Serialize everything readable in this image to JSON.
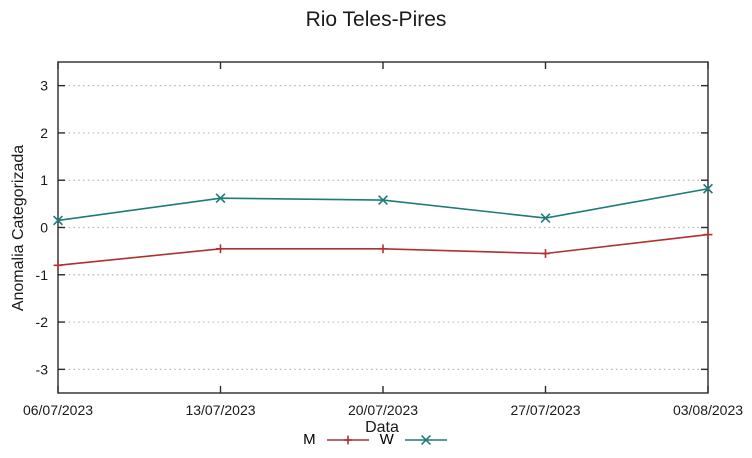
{
  "title": "Rio Teles-Pires",
  "chart_data": {
    "type": "line",
    "title": "Rio Teles-Pires",
    "xlabel": "Data",
    "ylabel": "Anomalia Categorizada",
    "categories": [
      "06/07/2023",
      "13/07/2023",
      "20/07/2023",
      "27/07/2023",
      "03/08/2023"
    ],
    "series": [
      {
        "name": "M",
        "marker": "plus",
        "color": "#b03030",
        "values": [
          -0.8,
          -0.45,
          -0.45,
          -0.55,
          -0.15
        ]
      },
      {
        "name": "W",
        "marker": "cross",
        "color": "#1f7a78",
        "values": [
          0.15,
          0.62,
          0.58,
          0.2,
          0.82
        ]
      }
    ],
    "yticks": [
      -3,
      -2,
      -1,
      0,
      1,
      2,
      3
    ],
    "ylim": [
      -3.5,
      3.5
    ],
    "grid": "horizontal-dotted",
    "legend_position": "bottom-center"
  },
  "colors": {
    "axis": "#2b2b2b",
    "grid": "#b9b9b9",
    "text": "#1a1a1a",
    "background": "#ffffff"
  }
}
